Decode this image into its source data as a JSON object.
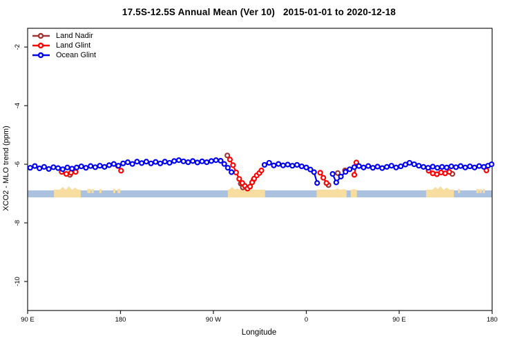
{
  "chart_data": {
    "type": "line",
    "title": "17.5S-12.5S Annual Mean (Ver 10)   2015-01-01 to 2020-12-18",
    "xlabel": "Longitude",
    "ylabel": "XCO2 - MLO trend (ppm)",
    "grid": "off",
    "legend_position": "top-left",
    "x_axis": {
      "range": [
        90,
        540
      ],
      "note": "longitude unrolled eastward from 90E across the dateline twice",
      "ticks": [
        {
          "pos": 90,
          "label": "90 E"
        },
        {
          "pos": 180,
          "label": "180"
        },
        {
          "pos": 270,
          "label": "90 W"
        },
        {
          "pos": 360,
          "label": "0"
        },
        {
          "pos": 450,
          "label": "90 E"
        },
        {
          "pos": 540,
          "label": "180"
        }
      ]
    },
    "y_axis": {
      "range": [
        -1.36,
        -10.99
      ],
      "ticks": [
        {
          "pos": -2,
          "label": "-2"
        },
        {
          "pos": -4,
          "label": "-4"
        },
        {
          "pos": -6,
          "label": "-6"
        },
        {
          "pos": -8,
          "label": "-8"
        },
        {
          "pos": -10,
          "label": "-10"
        }
      ]
    },
    "map_strip": {
      "ocean_color": "#abc1e0",
      "land_color": "#f7dd9f",
      "v_top": -6.89,
      "v_bottom": -7.13,
      "land": [
        {
          "name": "australia-west-pass",
          "from": 115.5,
          "to": 141.5,
          "peaks": [
            {
              "at": 124,
              "h": 5
            },
            {
              "at": 130,
              "h": 6
            },
            {
              "at": 136,
              "h": 4
            }
          ]
        },
        {
          "name": "south-america",
          "from": 284,
          "to": 320,
          "peaks": [
            {
              "at": 288,
              "h": 5
            },
            {
              "at": 293,
              "h": 3
            }
          ]
        },
        {
          "name": "africa",
          "from": 370,
          "to": 399,
          "peaks": [
            {
              "at": 390,
              "h": 3
            },
            {
              "at": 396,
              "h": 2
            }
          ]
        },
        {
          "name": "madagascar",
          "from": 403,
          "to": 409,
          "peaks": [
            {
              "at": 406,
              "h": 2
            }
          ]
        },
        {
          "name": "australia-east-pass",
          "from": 476,
          "to": 503,
          "peaks": [
            {
              "at": 485,
              "h": 5
            },
            {
              "at": 490,
              "h": 6
            },
            {
              "at": 496,
              "h": 4
            }
          ]
        }
      ],
      "islands": [
        {
          "at": 149.5,
          "w": 2.5
        },
        {
          "at": 153,
          "w": 1.5
        },
        {
          "at": 160.5,
          "w": 1.5
        },
        {
          "at": 174,
          "w": 1.5
        },
        {
          "at": 178.5,
          "w": 2
        },
        {
          "at": 508,
          "w": 1.5
        },
        {
          "at": 526,
          "w": 2
        },
        {
          "at": 529,
          "w": 1.5
        },
        {
          "at": 532,
          "w": 1.5
        }
      ]
    },
    "series": [
      {
        "name": "Land Nadir",
        "color": "#9e3535",
        "segments": [
          [
            [
              131,
              -6.36
            ]
          ],
          [
            [
              283.5,
              -5.7
            ]
          ],
          [
            [
              296.5,
              -6.66
            ],
            [
              298.5,
              -6.79
            ]
          ],
          [
            [
              309,
              -6.52
            ]
          ],
          [
            [
              381.5,
              -6.71
            ]
          ],
          [
            [
              390.5,
              -6.3
            ]
          ],
          [
            [
              397.5,
              -6.21
            ]
          ],
          [
            [
              501.5,
              -6.33
            ]
          ]
        ]
      },
      {
        "name": "Land Glint",
        "color": "#ff0000",
        "segments": [
          [
            [
              123,
              -6.26
            ],
            [
              127.5,
              -6.33
            ],
            [
              132,
              -6.29
            ],
            [
              136.5,
              -6.26
            ]
          ],
          [
            [
              177.5,
              -6.06
            ],
            [
              180.5,
              -6.22
            ]
          ],
          [
            [
              286,
              -5.84
            ],
            [
              289,
              -6.03
            ],
            [
              292,
              -6.28
            ],
            [
              295,
              -6.5
            ],
            [
              298,
              -6.64
            ],
            [
              300.5,
              -6.74
            ],
            [
              303,
              -6.83
            ],
            [
              305.5,
              -6.76
            ],
            [
              307.5,
              -6.62
            ],
            [
              309.5,
              -6.49
            ],
            [
              312,
              -6.38
            ],
            [
              314.5,
              -6.3
            ],
            [
              316.5,
              -6.21
            ]
          ],
          [
            [
              373.5,
              -6.29
            ],
            [
              376.5,
              -6.46
            ],
            [
              379.5,
              -6.64
            ]
          ],
          [
            [
              406.5,
              -6.36
            ],
            [
              408.5,
              -5.94
            ]
          ],
          [
            [
              478.5,
              -6.22
            ],
            [
              482.5,
              -6.31
            ],
            [
              486.5,
              -6.34
            ],
            [
              490.5,
              -6.28
            ],
            [
              494.5,
              -6.31
            ],
            [
              498.5,
              -6.26
            ]
          ],
          [
            [
              534.5,
              -6.21
            ]
          ]
        ]
      },
      {
        "name": "Ocean Glint",
        "color": "#0000f0",
        "segments": [
          [
            [
              92.5,
              -6.12
            ],
            [
              97,
              -6.06
            ],
            [
              101.5,
              -6.14
            ],
            [
              106,
              -6.09
            ],
            [
              110.5,
              -6.16
            ],
            [
              115,
              -6.1
            ],
            [
              119.5,
              -6.13
            ],
            [
              124,
              -6.17
            ],
            [
              128.5,
              -6.11
            ],
            [
              133,
              -6.15
            ],
            [
              137.5,
              -6.11
            ],
            [
              142,
              -6.07
            ],
            [
              146.5,
              -6.12
            ],
            [
              151,
              -6.06
            ],
            [
              155.5,
              -6.1
            ],
            [
              160,
              -6.05
            ],
            [
              164.5,
              -6.09
            ],
            [
              169,
              -6.03
            ],
            [
              173.5,
              -5.99
            ],
            [
              178,
              -6.05
            ],
            [
              182.5,
              -5.97
            ],
            [
              187,
              -5.93
            ],
            [
              191.5,
              -5.99
            ],
            [
              196,
              -5.91
            ],
            [
              200.5,
              -5.96
            ],
            [
              205,
              -5.91
            ],
            [
              209.5,
              -5.97
            ],
            [
              214,
              -5.92
            ],
            [
              218.5,
              -5.97
            ],
            [
              223,
              -5.91
            ],
            [
              227.5,
              -5.95
            ],
            [
              232,
              -5.89
            ],
            [
              236.5,
              -5.86
            ],
            [
              241,
              -5.9
            ],
            [
              245.5,
              -5.93
            ],
            [
              250,
              -5.89
            ],
            [
              254.5,
              -5.94
            ],
            [
              259,
              -5.9
            ],
            [
              263.5,
              -5.93
            ],
            [
              268,
              -5.89
            ],
            [
              272.5,
              -5.86
            ],
            [
              277,
              -5.88
            ],
            [
              280.5,
              -5.99
            ],
            [
              284,
              -6.12
            ],
            [
              287.5,
              -6.27
            ]
          ],
          [
            [
              319.5,
              -6.02
            ],
            [
              324,
              -5.95
            ],
            [
              328.5,
              -6.04
            ],
            [
              333,
              -5.99
            ],
            [
              337.5,
              -6.04
            ],
            [
              342,
              -6.01
            ],
            [
              346.5,
              -6.05
            ],
            [
              351,
              -6.02
            ],
            [
              355.5,
              -6.07
            ],
            [
              360,
              -6.11
            ],
            [
              364,
              -6.18
            ],
            [
              367.5,
              -6.27
            ],
            [
              370.5,
              -6.64
            ]
          ],
          [
            [
              385.5,
              -6.33
            ],
            [
              389,
              -6.62
            ],
            [
              393.5,
              -6.42
            ],
            [
              398,
              -6.26
            ],
            [
              402,
              -6.17
            ],
            [
              406.5,
              -6.1
            ],
            [
              411,
              -6.06
            ],
            [
              415.5,
              -6.11
            ],
            [
              420,
              -6.06
            ],
            [
              424.5,
              -6.12
            ],
            [
              429,
              -6.08
            ],
            [
              433.5,
              -6.13
            ],
            [
              438,
              -6.09
            ],
            [
              442.5,
              -6.05
            ],
            [
              447,
              -6.11
            ],
            [
              451.5,
              -6.07
            ],
            [
              456,
              -6.01
            ],
            [
              460,
              -5.95
            ],
            [
              464.5,
              -6.0
            ],
            [
              469,
              -6.05
            ],
            [
              473.5,
              -6.09
            ],
            [
              478,
              -6.12
            ],
            [
              482.5,
              -6.08
            ],
            [
              487,
              -6.12
            ],
            [
              491.5,
              -6.09
            ],
            [
              496,
              -6.11
            ],
            [
              500.5,
              -6.07
            ],
            [
              505,
              -6.1
            ],
            [
              509.5,
              -6.06
            ],
            [
              514,
              -6.11
            ],
            [
              518.5,
              -6.07
            ],
            [
              523,
              -6.11
            ],
            [
              527.5,
              -6.06
            ],
            [
              532,
              -6.09
            ],
            [
              536,
              -6.05
            ],
            [
              539.5,
              -6.0
            ]
          ]
        ]
      }
    ]
  }
}
